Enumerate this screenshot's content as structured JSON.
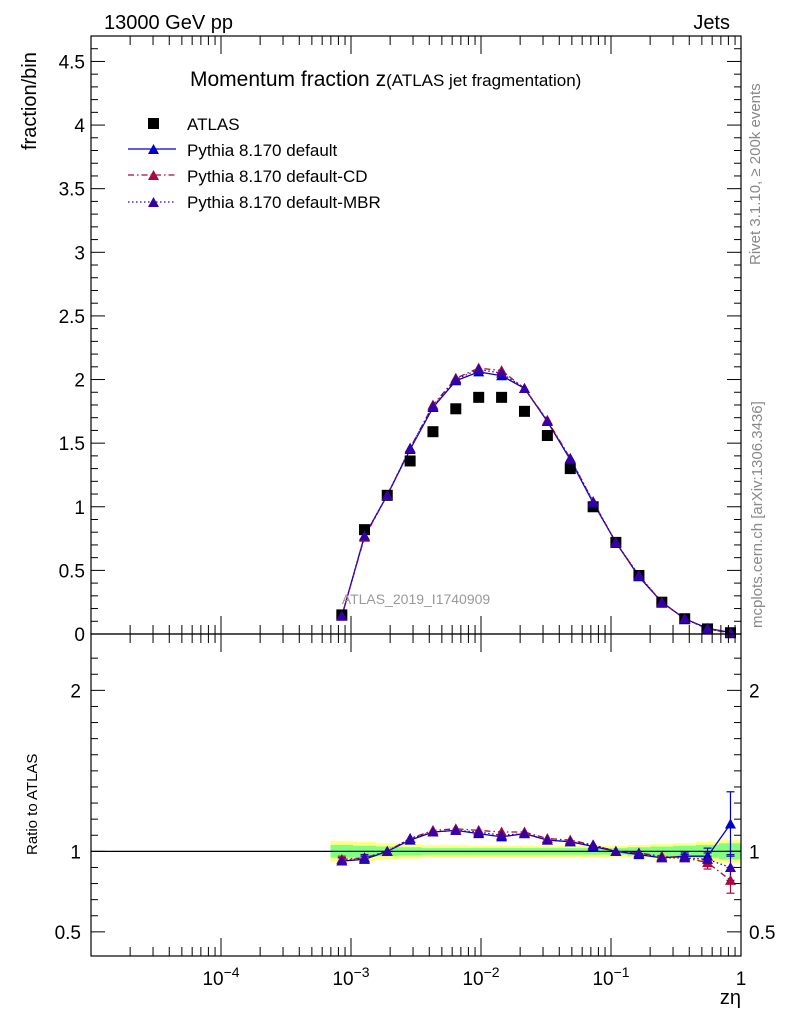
{
  "header": {
    "left": "13000 GeV pp",
    "right": "Jets"
  },
  "side_labels": {
    "rivet": "Rivet 3.1.10, ≥ 200k events",
    "mcplots": "mcplots.cern.ch [arXiv:1306.3436]"
  },
  "colors": {
    "atlas": "#000000",
    "default": "#0000cc",
    "cd": "#aa0a3c",
    "mbr": "#3300aa",
    "band_yellow": "#ffff80",
    "band_green": "#80ff80"
  },
  "chart_data": [
    {
      "type": "line",
      "title_main": "Momentum fraction z",
      "title_sub": "(ATLAS jet fragmentation)",
      "ylabel": "fraction/bin",
      "watermark": "ATLAS_2019_I1740909",
      "xscale": "log",
      "xlim": [
        1e-05,
        1
      ],
      "ylim": [
        0,
        4.7
      ],
      "yticks": [
        0,
        0.5,
        1,
        1.5,
        2,
        2.5,
        3,
        3.5,
        4,
        4.5
      ],
      "ytick_labels": [
        "0",
        "0.5",
        "1",
        "1.5",
        "2",
        "2.5",
        "3",
        "3.5",
        "4",
        "4.5"
      ],
      "legend_position": "top-left",
      "x": [
        0.00085,
        0.00127,
        0.0019,
        0.00285,
        0.00427,
        0.0064,
        0.0096,
        0.0144,
        0.0216,
        0.0324,
        0.0486,
        0.0729,
        0.109,
        0.164,
        0.246,
        0.369,
        0.553,
        0.83
      ],
      "series": [
        {
          "name": "ATLAS",
          "style": "markers",
          "values": [
            0.15,
            0.82,
            1.09,
            1.36,
            1.59,
            1.77,
            1.86,
            1.86,
            1.75,
            1.56,
            1.3,
            1.0,
            0.72,
            0.46,
            0.25,
            0.12,
            0.04,
            0.01
          ]
        },
        {
          "name": "Pythia 8.170 default",
          "style": "solid",
          "values": [
            0.14,
            0.77,
            1.09,
            1.45,
            1.78,
            1.99,
            2.06,
            2.03,
            1.93,
            1.67,
            1.37,
            1.03,
            0.72,
            0.45,
            0.25,
            0.12,
            0.045,
            0.012
          ]
        },
        {
          "name": "Pythia 8.170 default-CD",
          "style": "dashdot",
          "values": [
            0.14,
            0.76,
            1.09,
            1.46,
            1.8,
            2.01,
            2.09,
            2.07,
            1.93,
            1.68,
            1.38,
            1.04,
            0.72,
            0.46,
            0.25,
            0.12,
            0.04,
            0.008
          ]
        },
        {
          "name": "Pythia 8.170 default-MBR",
          "style": "dotted",
          "values": [
            0.14,
            0.77,
            1.09,
            1.46,
            1.79,
            2.0,
            2.08,
            2.05,
            1.93,
            1.67,
            1.38,
            1.04,
            0.72,
            0.46,
            0.25,
            0.12,
            0.04,
            0.009
          ]
        }
      ]
    },
    {
      "type": "line",
      "ylabel": "Ratio to ATLAS",
      "xlabel": "zη",
      "xscale": "log",
      "xlim": [
        1e-05,
        1
      ],
      "ylim": [
        0.35,
        2.35
      ],
      "yticks": [
        0.5,
        1,
        2
      ],
      "ytick_labels": [
        "0.5",
        "1",
        "2"
      ],
      "xticks": [
        0.0001,
        0.001,
        0.01,
        0.1,
        1
      ],
      "xtick_labels": [
        "10^-4",
        "10^-3",
        "10^-2",
        "10^-1",
        "1"
      ],
      "x": [
        0.00085,
        0.00127,
        0.0019,
        0.00285,
        0.00427,
        0.0064,
        0.0096,
        0.0144,
        0.0216,
        0.0324,
        0.0486,
        0.0729,
        0.109,
        0.164,
        0.246,
        0.369,
        0.553,
        0.83
      ],
      "reference": 1,
      "bands": {
        "yellow_half_width": [
          0.065,
          0.06,
          0.05,
          0.045,
          0.04,
          0.04,
          0.035,
          0.035,
          0.035,
          0.035,
          0.035,
          0.035,
          0.035,
          0.04,
          0.045,
          0.05,
          0.06,
          0.07
        ],
        "green_half_width": [
          0.04,
          0.035,
          0.03,
          0.025,
          0.02,
          0.02,
          0.02,
          0.02,
          0.02,
          0.02,
          0.02,
          0.02,
          0.02,
          0.025,
          0.03,
          0.035,
          0.04,
          0.05
        ]
      },
      "series": [
        {
          "name": "Pythia 8.170 default",
          "style": "solid",
          "values": [
            0.94,
            0.95,
            1.0,
            1.07,
            1.12,
            1.13,
            1.11,
            1.09,
            1.11,
            1.07,
            1.06,
            1.03,
            1.0,
            0.98,
            0.96,
            0.97,
            0.97,
            1.17
          ],
          "errors": [
            0.02,
            0.02,
            0.01,
            0.01,
            0.01,
            0.01,
            0.01,
            0.01,
            0.01,
            0.01,
            0.01,
            0.01,
            0.01,
            0.01,
            0.015,
            0.02,
            0.05,
            0.2
          ]
        },
        {
          "name": "Pythia 8.170 default-CD",
          "style": "dashdot",
          "values": [
            0.95,
            0.96,
            1.0,
            1.08,
            1.13,
            1.14,
            1.13,
            1.12,
            1.12,
            1.08,
            1.07,
            1.04,
            1.0,
            0.99,
            0.97,
            0.96,
            0.93,
            0.82
          ],
          "errors": [
            0.02,
            0.02,
            0.01,
            0.01,
            0.01,
            0.01,
            0.01,
            0.01,
            0.01,
            0.01,
            0.01,
            0.01,
            0.01,
            0.01,
            0.015,
            0.02,
            0.04,
            0.08
          ]
        },
        {
          "name": "Pythia 8.170 default-MBR",
          "style": "dotted",
          "values": [
            0.94,
            0.96,
            1.0,
            1.08,
            1.12,
            1.13,
            1.12,
            1.1,
            1.11,
            1.07,
            1.06,
            1.04,
            1.0,
            0.99,
            0.96,
            0.96,
            0.95,
            0.9
          ],
          "errors": [
            0.02,
            0.02,
            0.01,
            0.01,
            0.01,
            0.01,
            0.01,
            0.01,
            0.01,
            0.01,
            0.01,
            0.01,
            0.01,
            0.01,
            0.015,
            0.02,
            0.04,
            0.08
          ]
        }
      ]
    }
  ]
}
